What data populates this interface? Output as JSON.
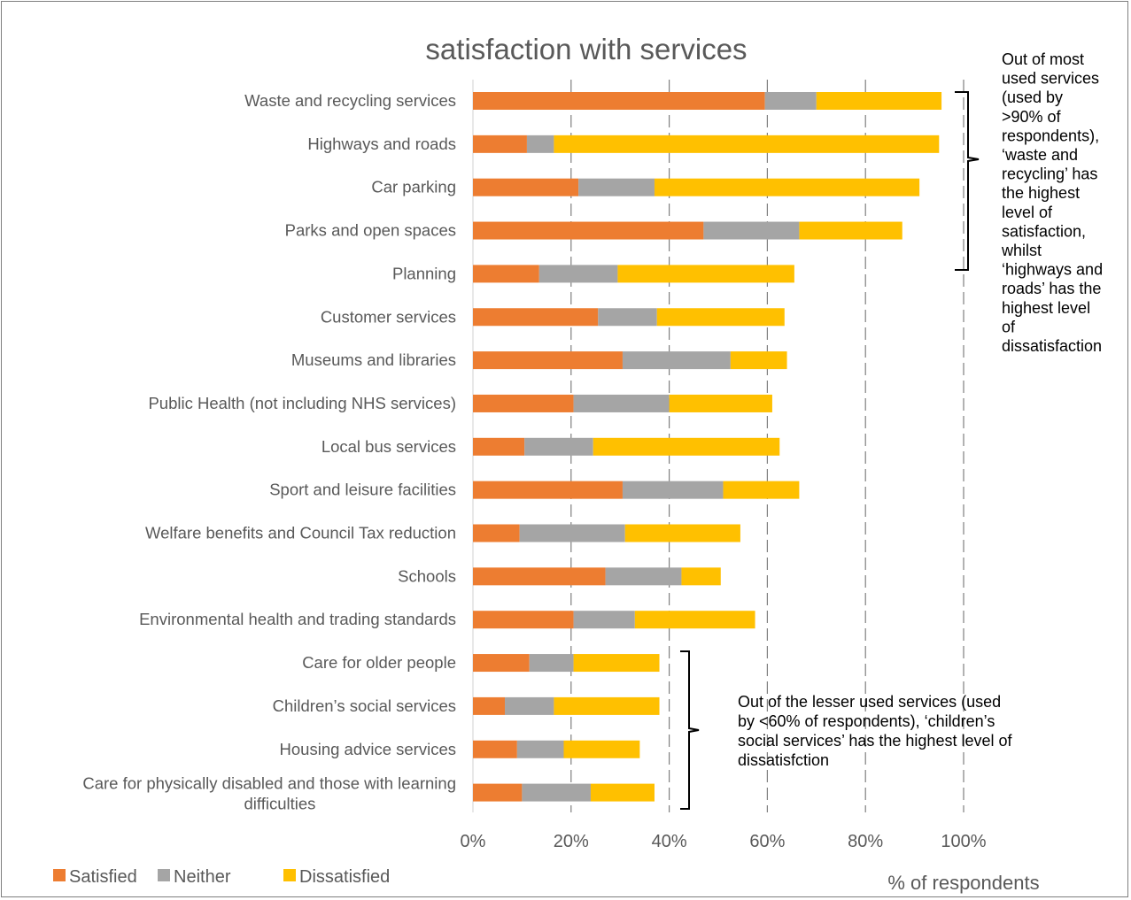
{
  "chart_data": {
    "type": "bar",
    "orientation": "horizontal",
    "stacked": true,
    "title": "satisfaction with services",
    "xlabel": "% of respondents",
    "ylabel": "",
    "xlim": [
      0,
      100
    ],
    "x_ticks": [
      "0%",
      "20%",
      "40%",
      "60%",
      "80%",
      "100%"
    ],
    "grid": "vertical dashed",
    "legend_position": "bottom-left",
    "categories": [
      "Waste and recycling services",
      "Highways and roads",
      "Car parking",
      "Parks and open spaces",
      "Planning",
      "Customer services",
      "Museums and libraries",
      "Public Health (not including NHS services)",
      "Local bus services",
      "Sport and leisure facilities",
      "Welfare benefits and Council Tax reduction",
      "Schools",
      "Environmental health and trading standards",
      "Care for older people",
      "Children’s social services",
      "Housing advice services",
      "Care for physically disabled and those with learning difficulties"
    ],
    "series": [
      {
        "name": "Satisfied",
        "color": "#ed7d31",
        "values": [
          59.5,
          11,
          21.5,
          47,
          13.5,
          25.5,
          30.5,
          20.5,
          10.5,
          30.5,
          9.5,
          27,
          20.5,
          11.5,
          6.5,
          9,
          10
        ]
      },
      {
        "name": "Neither",
        "color": "#a5a5a5",
        "values": [
          10.5,
          5.5,
          15.5,
          19.5,
          16,
          12,
          22,
          19.5,
          14,
          20.5,
          21.5,
          15.5,
          12.5,
          9,
          10,
          9.5,
          14
        ]
      },
      {
        "name": "Dissatisfied",
        "color": "#ffc000",
        "values": [
          25.5,
          78.5,
          54,
          21,
          36,
          26,
          11.5,
          21,
          38,
          15.5,
          23.5,
          8,
          24.5,
          17.5,
          21.5,
          15.5,
          13
        ]
      }
    ],
    "annotations": [
      {
        "lines": [
          "Out of most",
          "used services",
          "(used by",
          ">90% of",
          "respondents),",
          "‘waste and",
          "recycling’ has",
          "the highest",
          "level of",
          "satisfaction,",
          "whilst",
          "‘highways and",
          "roads’ has the",
          "highest level",
          "of",
          "dissatisfaction"
        ]
      },
      {
        "lines": [
          "Out of the lesser used services (used",
          "by <60% of respondents), ‘children’s",
          "social services’ has the highest level of",
          "dissatisfction"
        ]
      }
    ]
  }
}
